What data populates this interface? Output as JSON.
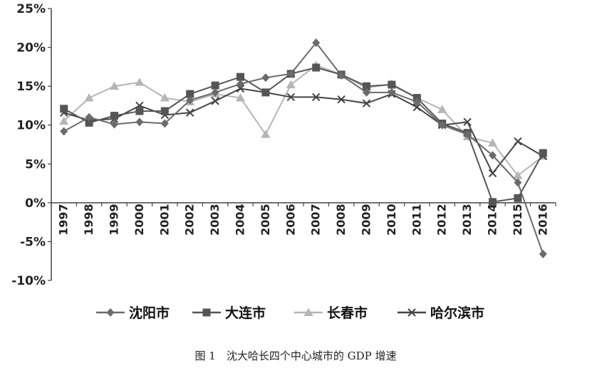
{
  "chart_data": {
    "type": "line",
    "caption": "图 1　沈大哈长四个中心城市的 GDP 增速",
    "categories": [
      "1997",
      "1998",
      "1999",
      "2000",
      "2001",
      "2002",
      "2003",
      "2004",
      "2005",
      "2006",
      "2007",
      "2008",
      "2009",
      "2010",
      "2011",
      "2012",
      "2013",
      "2014",
      "2015",
      "2016"
    ],
    "yticks": [
      "25%",
      "20%",
      "15%",
      "10%",
      "5%",
      "0%",
      "-5%",
      "-10%"
    ],
    "ylim": [
      -10,
      25
    ],
    "grid": false,
    "legend_position": "bottom",
    "series": [
      {
        "name": "沈阳市",
        "marker": "diamond",
        "color": "#6b6b6b",
        "values": [
          9.2,
          11.0,
          10.1,
          10.4,
          10.2,
          13.2,
          14.2,
          15.3,
          16.1,
          16.6,
          20.6,
          16.4,
          14.2,
          14.2,
          13.0,
          10.0,
          8.8,
          6.1,
          2.6,
          -6.6
        ]
      },
      {
        "name": "大连市",
        "marker": "square",
        "color": "#555555",
        "values": [
          12.1,
          10.3,
          11.2,
          11.8,
          11.8,
          14.0,
          15.1,
          16.2,
          14.2,
          16.6,
          17.4,
          16.5,
          15.0,
          15.2,
          13.5,
          10.2,
          9.0,
          0.1,
          0.6,
          6.4
        ]
      },
      {
        "name": "长春市",
        "marker": "triangle",
        "color": "#b5b5b5",
        "values": [
          10.5,
          13.5,
          15.0,
          15.5,
          13.5,
          13.0,
          14.0,
          13.5,
          8.8,
          15.2,
          17.7,
          16.5,
          14.8,
          15.3,
          13.5,
          12.0,
          8.5,
          7.7,
          3.5,
          6.0
        ]
      },
      {
        "name": "哈尔滨市",
        "marker": "x",
        "color": "#444444",
        "values": [
          11.6,
          10.6,
          10.8,
          12.5,
          11.3,
          11.6,
          13.1,
          14.7,
          14.2,
          13.6,
          13.6,
          13.3,
          12.8,
          14.0,
          12.3,
          10.0,
          10.4,
          3.8,
          7.9,
          6.0
        ]
      }
    ]
  }
}
